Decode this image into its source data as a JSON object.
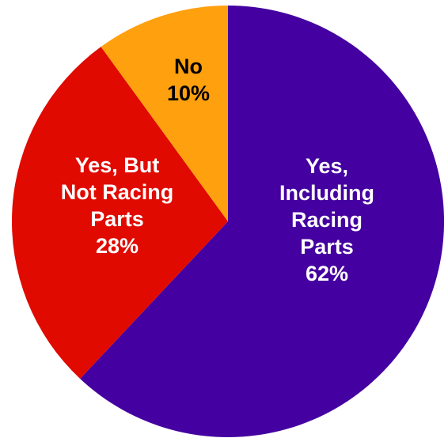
{
  "chart_data": {
    "type": "pie",
    "title": "",
    "legend": "none",
    "start_angle_deg": 0,
    "direction": "clockwise",
    "slices": [
      {
        "label": "Yes, Including Racing Parts",
        "label_lines": [
          "Yes,",
          "Including",
          "Racing",
          "Parts"
        ],
        "value": 62,
        "value_text": "62%",
        "color": "#4400a0",
        "text_color": "#ffffff"
      },
      {
        "label": "Yes, But Not Racing Parts",
        "label_lines": [
          "Yes, But",
          "Not Racing",
          "Parts"
        ],
        "value": 28,
        "value_text": "28%",
        "color": "#e00a00",
        "text_color": "#ffffff"
      },
      {
        "label": "No",
        "label_lines": [
          "No"
        ],
        "value": 10,
        "value_text": "10%",
        "color": "#ffa00f",
        "text_color": "#000000"
      }
    ]
  }
}
